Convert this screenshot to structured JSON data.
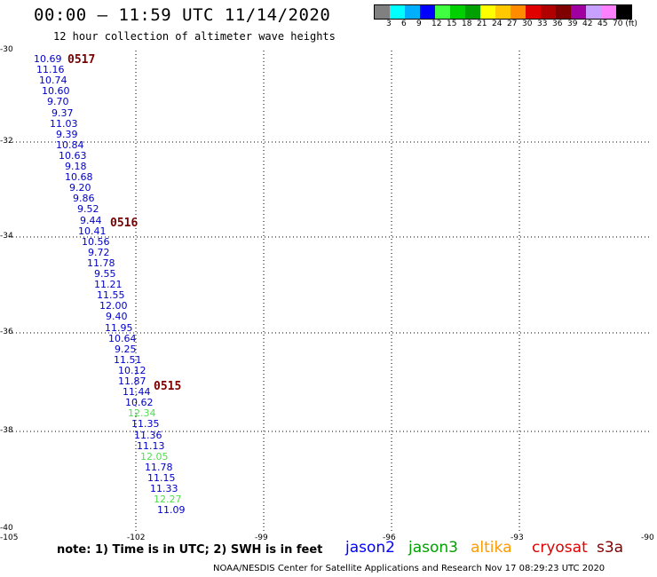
{
  "header": {
    "title": "00:00 – 11:59 UTC 11/14/2020",
    "subtitle": "12 hour collection of altimeter wave heights"
  },
  "legend": {
    "colors": [
      "#808080",
      "#00ffff",
      "#00b0ff",
      "#0000ff",
      "#40ff40",
      "#00d000",
      "#00a000",
      "#ffff00",
      "#ffc800",
      "#ff8c00",
      "#e00000",
      "#b00000",
      "#800000",
      "#a000a0",
      "#c8a0ff",
      "#ff80ff",
      "#000000"
    ],
    "labels": [
      "3",
      "6",
      "9",
      "12",
      "15",
      "18",
      "21",
      "24",
      "27",
      "30",
      "33",
      "36",
      "39",
      "42",
      "45",
      "70 (ft)"
    ]
  },
  "axes": {
    "y_ticks": [
      "-30",
      "-32",
      "-34",
      "-36",
      "-38",
      "-40"
    ],
    "x_ticks": [
      "-105",
      "-102",
      "-99",
      "-96",
      "-93",
      "-90"
    ]
  },
  "wave_heights": [
    {
      "v": "10.69",
      "c": "#0000c8"
    },
    {
      "v": "11.16",
      "c": "#0000c8"
    },
    {
      "v": "10.74",
      "c": "#0000c8"
    },
    {
      "v": "10.60",
      "c": "#0000c8"
    },
    {
      "v": "9.70",
      "c": "#0000c8"
    },
    {
      "v": "9.37",
      "c": "#0000c8"
    },
    {
      "v": "11.03",
      "c": "#0000c8"
    },
    {
      "v": "9.39",
      "c": "#0000c8"
    },
    {
      "v": "10.84",
      "c": "#0000c8"
    },
    {
      "v": "10.63",
      "c": "#0000c8"
    },
    {
      "v": "9.18",
      "c": "#0000c8"
    },
    {
      "v": "10.68",
      "c": "#0000c8"
    },
    {
      "v": "9.20",
      "c": "#0000c8"
    },
    {
      "v": "9.86",
      "c": "#0000c8"
    },
    {
      "v": "9.52",
      "c": "#0000c8"
    },
    {
      "v": "9.44",
      "c": "#0000c8"
    },
    {
      "v": "10.41",
      "c": "#0000c8"
    },
    {
      "v": "10.56",
      "c": "#0000c8"
    },
    {
      "v": "9.72",
      "c": "#0000c8"
    },
    {
      "v": "11.78",
      "c": "#0000c8"
    },
    {
      "v": "9.55",
      "c": "#0000c8"
    },
    {
      "v": "11.21",
      "c": "#0000c8"
    },
    {
      "v": "11.55",
      "c": "#0000c8"
    },
    {
      "v": "12.00",
      "c": "#0000c8"
    },
    {
      "v": "9.40",
      "c": "#0000c8"
    },
    {
      "v": "11.95",
      "c": "#0000c8"
    },
    {
      "v": "10.64",
      "c": "#0000c8"
    },
    {
      "v": "9.25",
      "c": "#0000c8"
    },
    {
      "v": "11.51",
      "c": "#0000c8"
    },
    {
      "v": "10.12",
      "c": "#0000c8"
    },
    {
      "v": "11.87",
      "c": "#0000c8"
    },
    {
      "v": "11.44",
      "c": "#0000c8"
    },
    {
      "v": "10.62",
      "c": "#0000c8"
    },
    {
      "v": "12.34",
      "c": "#50e050"
    },
    {
      "v": "11.35",
      "c": "#0000c8"
    },
    {
      "v": "11.36",
      "c": "#0000c8"
    },
    {
      "v": "11.13",
      "c": "#0000c8"
    },
    {
      "v": "12.05",
      "c": "#50e050"
    },
    {
      "v": "11.78",
      "c": "#0000c8"
    },
    {
      "v": "11.15",
      "c": "#0000c8"
    },
    {
      "v": "11.33",
      "c": "#0000c8"
    },
    {
      "v": "12.27",
      "c": "#50e050"
    },
    {
      "v": "11.09",
      "c": "#0000c8"
    }
  ],
  "time_marks": [
    "0517",
    "0516",
    "0515"
  ],
  "footer": {
    "note": "note: 1) Time is in UTC; 2) SWH is in feet",
    "satellites": [
      {
        "name": "jason2",
        "color": "#0000ff"
      },
      {
        "name": "jason3",
        "color": "#00a000"
      },
      {
        "name": "altika",
        "color": "#ff9900"
      },
      {
        "name": "cryosat",
        "color": "#e00000"
      },
      {
        "name": "s3a",
        "color": "#800000"
      }
    ],
    "credit": "NOAA/NESDIS Center for Satellite Applications and Research    Nov 17 08:29:23 UTC 2020"
  }
}
